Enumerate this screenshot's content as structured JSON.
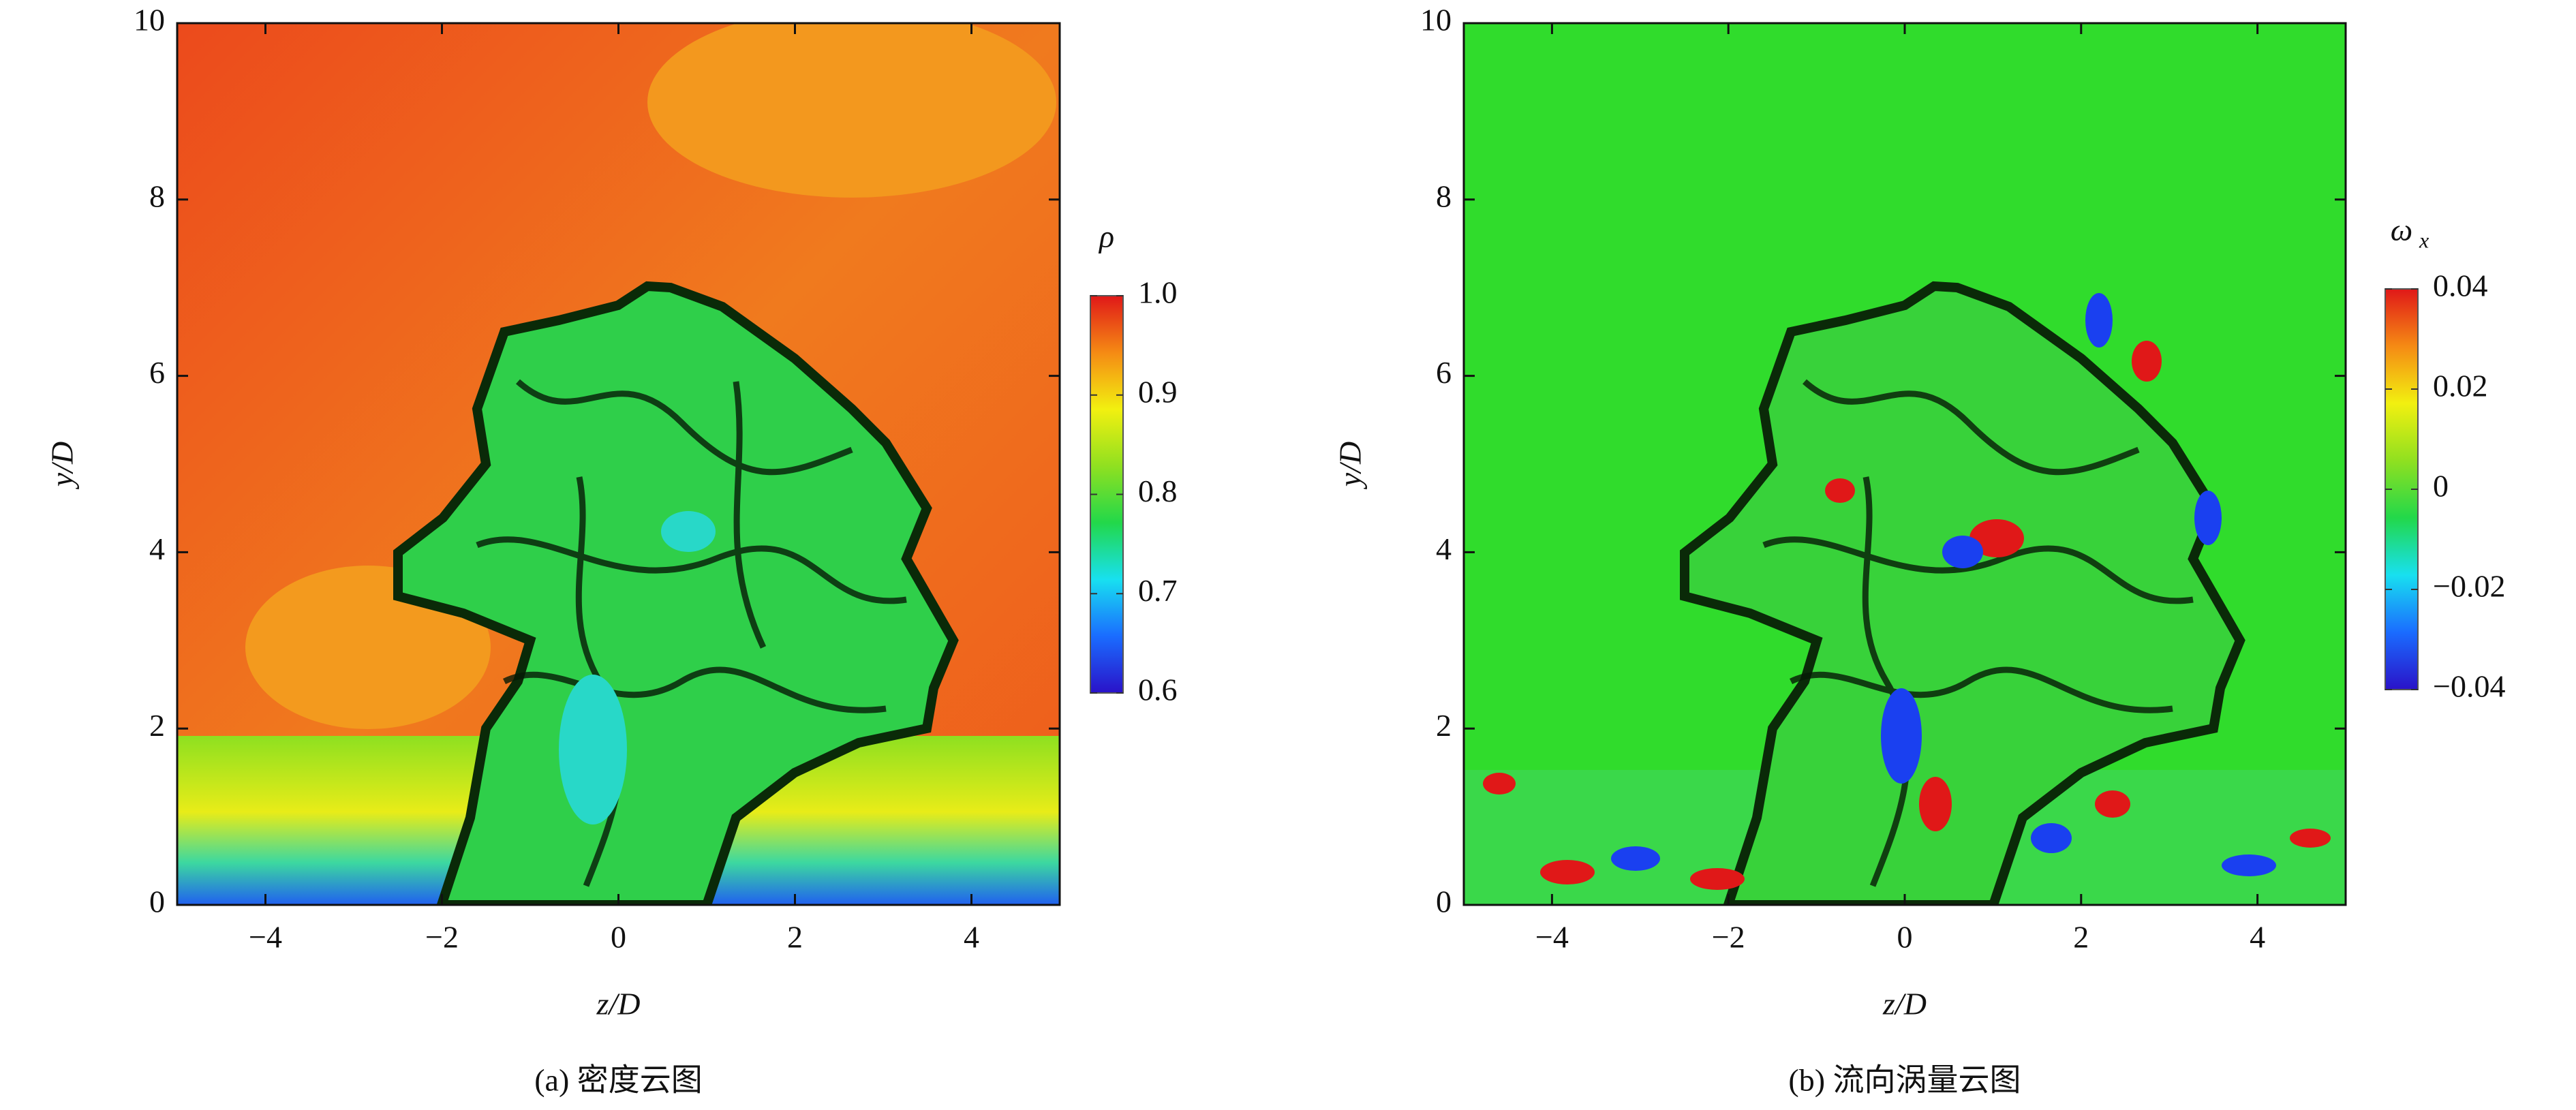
{
  "chart_data": [
    {
      "type": "contour",
      "caption": "(a) 密度云图",
      "xlabel": "z/D",
      "ylabel": "y/D",
      "xlim": [
        -5,
        5
      ],
      "xticks": [
        {
          "value": -4,
          "label": "−4"
        },
        {
          "value": -2,
          "label": "−2"
        },
        0,
        2,
        4
      ],
      "ylim": [
        0,
        10
      ],
      "yticks": [
        0,
        2,
        4,
        6,
        8,
        10
      ],
      "colorbar": {
        "title": "ρ",
        "lim": [
          0.6,
          1.0
        ],
        "ticks": [
          {
            "value": 1.0,
            "label": "1.0"
          },
          0.9,
          0.8,
          0.7,
          0.6
        ],
        "colormap": [
          "#2a12c8",
          "#1a6cff",
          "#18e0f0",
          "#22d84a",
          "#90e020",
          "#f2f010",
          "#f58a14",
          "#e01818"
        ]
      }
    },
    {
      "type": "contour",
      "caption": "(b) 流向涡量云图",
      "xlabel": "z/D",
      "ylabel": "y/D",
      "xlim": [
        -5,
        5
      ],
      "xticks": [
        {
          "value": -4,
          "label": "−4"
        },
        {
          "value": -2,
          "label": "−2"
        },
        0,
        2,
        4
      ],
      "ylim": [
        0,
        10
      ],
      "yticks": [
        0,
        2,
        4,
        6,
        8,
        10
      ],
      "colorbar": {
        "title": "ω",
        "title_subscript": "x",
        "lim": [
          -0.04,
          0.04
        ],
        "ticks": [
          0.04,
          0.02,
          0,
          {
            "value": -0.02,
            "label": "−0.02"
          },
          {
            "value": -0.04,
            "label": "−0.04"
          }
        ],
        "colormap": [
          "#2a12c8",
          "#1a6cff",
          "#18e0f0",
          "#22d84a",
          "#90e020",
          "#f2f010",
          "#f58a14",
          "#e01818"
        ]
      }
    }
  ]
}
